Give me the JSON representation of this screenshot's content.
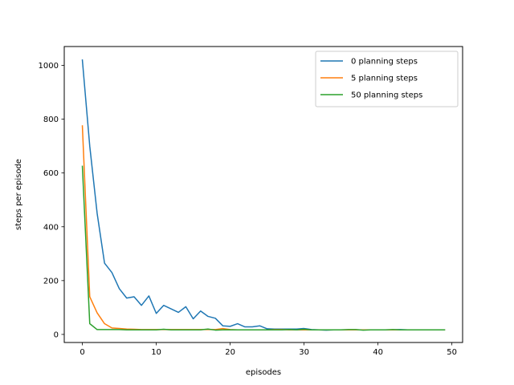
{
  "chart_data": {
    "type": "line",
    "xlabel": "episodes",
    "ylabel": "steps per episode",
    "xlim": [
      -2.45,
      51.45
    ],
    "ylim": [
      -30,
      1070
    ],
    "xticks": [
      0,
      10,
      20,
      30,
      40,
      50
    ],
    "yticks": [
      0,
      200,
      400,
      600,
      800,
      1000
    ],
    "grid": false,
    "legend_position": "top-right",
    "series": [
      {
        "name": "0 planning steps",
        "color": "#1f77b4",
        "x": [
          0,
          1,
          2,
          3,
          4,
          5,
          6,
          7,
          8,
          9,
          10,
          11,
          12,
          13,
          14,
          15,
          16,
          17,
          18,
          19,
          20,
          21,
          22,
          23,
          24,
          25,
          26,
          27,
          28,
          29,
          30,
          31,
          32,
          33,
          34,
          35,
          36,
          37,
          38,
          39,
          40,
          41,
          42,
          43,
          44,
          45,
          46,
          47,
          48,
          49
        ],
        "y": [
          1020,
          700,
          450,
          265,
          230,
          170,
          135,
          140,
          108,
          143,
          78,
          108,
          95,
          82,
          103,
          58,
          87,
          67,
          60,
          32,
          30,
          40,
          28,
          28,
          32,
          21,
          20,
          20,
          20,
          20,
          22,
          18,
          17,
          16,
          17,
          17,
          17,
          17,
          17,
          17,
          17,
          17,
          17,
          18,
          17,
          17,
          17,
          17,
          17,
          17
        ]
      },
      {
        "name": "5 planning steps",
        "color": "#ff7f0e",
        "x": [
          0,
          1,
          2,
          3,
          4,
          5,
          6,
          7,
          8,
          9,
          10,
          11,
          12,
          13,
          14,
          15,
          16,
          17,
          18,
          19,
          20,
          21,
          22,
          23,
          24,
          25,
          26,
          27,
          28,
          29,
          30,
          31,
          32,
          33,
          34,
          35,
          36,
          37,
          38,
          39,
          40,
          41,
          42,
          43,
          44,
          45,
          46,
          47,
          48,
          49
        ],
        "y": [
          775,
          140,
          80,
          40,
          24,
          22,
          20,
          19,
          18,
          18,
          18,
          18,
          18,
          18,
          18,
          18,
          18,
          18,
          18,
          22,
          18,
          17,
          17,
          17,
          17,
          17,
          18,
          18,
          17,
          17,
          17,
          17,
          17,
          17,
          17,
          17,
          17,
          17,
          17,
          17,
          17,
          17,
          17,
          17,
          17,
          17,
          17,
          17,
          17,
          17
        ]
      },
      {
        "name": "50 planning steps",
        "color": "#2ca02c",
        "x": [
          0,
          1,
          2,
          3,
          4,
          5,
          6,
          7,
          8,
          9,
          10,
          11,
          12,
          13,
          14,
          15,
          16,
          17,
          18,
          19,
          20,
          21,
          22,
          23,
          24,
          25,
          26,
          27,
          28,
          29,
          30,
          31,
          32,
          33,
          34,
          35,
          36,
          37,
          38,
          39,
          40,
          41,
          42,
          43,
          44,
          45,
          46,
          47,
          48,
          49
        ],
        "y": [
          625,
          40,
          18,
          18,
          18,
          18,
          17,
          17,
          17,
          17,
          17,
          19,
          17,
          17,
          17,
          17,
          17,
          20,
          16,
          17,
          17,
          17,
          17,
          17,
          17,
          17,
          17,
          17,
          18,
          17,
          19,
          17,
          17,
          17,
          17,
          17,
          18,
          18,
          16,
          17,
          17,
          17,
          18,
          17,
          17,
          17,
          17,
          17,
          17,
          17
        ]
      }
    ]
  }
}
